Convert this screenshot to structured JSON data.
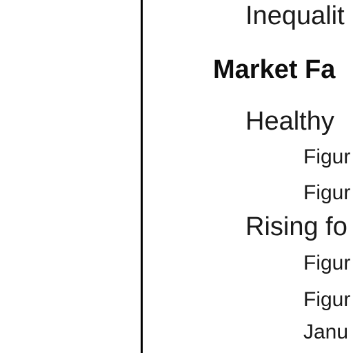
{
  "toc": {
    "items": [
      {
        "text": "Inequalit",
        "level": 2
      },
      {
        "text": "Market Fa",
        "level": 1
      },
      {
        "text": "Healthy",
        "level": 2
      },
      {
        "text": "Figur",
        "level": 3
      },
      {
        "text": "Figur",
        "level": 3
      },
      {
        "text": "Rising fo",
        "level": 2
      },
      {
        "text": "Figur",
        "level": 3
      },
      {
        "text": "Figur",
        "level": 3
      },
      {
        "text": "Janu",
        "level": 3
      }
    ]
  }
}
